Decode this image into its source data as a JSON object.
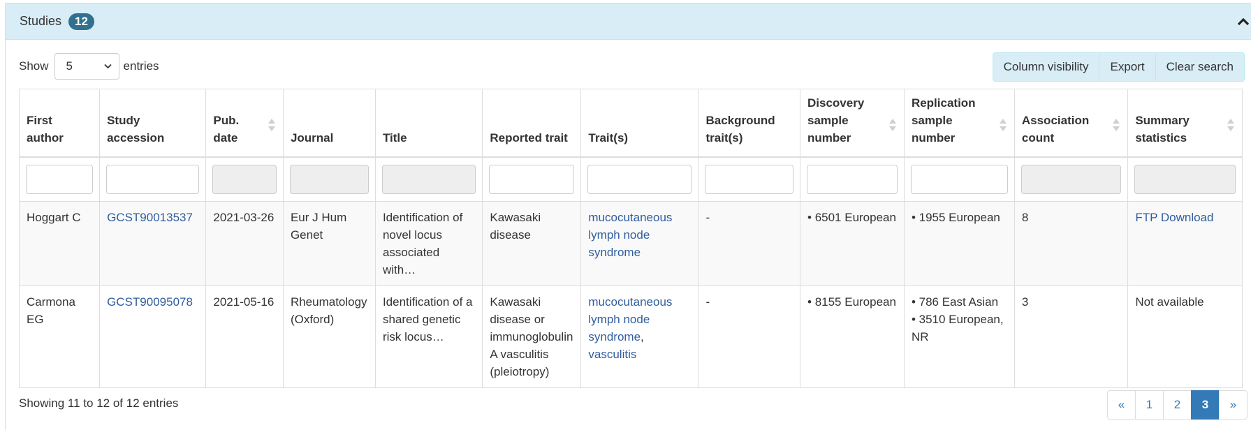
{
  "panel": {
    "title": "Studies",
    "count_badge": "12"
  },
  "length_control": {
    "prefix": "Show",
    "selected": "5",
    "suffix": "entries"
  },
  "toolbar": {
    "column_visibility_label": "Column visibility",
    "export_label": "Export",
    "clear_search_label": "Clear search"
  },
  "columns": [
    {
      "line1": "First",
      "line2": "author",
      "line3": "",
      "sortable": false,
      "filter": "enabled"
    },
    {
      "line1": "Study",
      "line2": "accession",
      "line3": "",
      "sortable": false,
      "filter": "enabled"
    },
    {
      "line1": "Pub.",
      "line2": "date",
      "line3": "",
      "sortable": true,
      "filter": "disabled"
    },
    {
      "line1": "Journal",
      "line2": "",
      "line3": "",
      "sortable": false,
      "filter": "disabled"
    },
    {
      "line1": "Title",
      "line2": "",
      "line3": "",
      "sortable": false,
      "filter": "disabled"
    },
    {
      "line1": "Reported trait",
      "line2": "",
      "line3": "",
      "sortable": false,
      "filter": "enabled"
    },
    {
      "line1": "Trait(s)",
      "line2": "",
      "line3": "",
      "sortable": false,
      "filter": "enabled"
    },
    {
      "line1": "Background",
      "line2": "trait(s)",
      "line3": "",
      "sortable": false,
      "filter": "enabled"
    },
    {
      "line1": "Discovery",
      "line2": "sample",
      "line3": "number",
      "sortable": true,
      "filter": "enabled"
    },
    {
      "line1": "Replication",
      "line2": "sample",
      "line3": "number",
      "sortable": true,
      "filter": "enabled"
    },
    {
      "line1": "Association",
      "line2": "count",
      "line3": "",
      "sortable": true,
      "filter": "disabled"
    },
    {
      "line1": "Summary",
      "line2": "statistics",
      "line3": "",
      "sortable": true,
      "filter": "disabled"
    }
  ],
  "rows": [
    {
      "first_author": "Hoggart C",
      "accession": "GCST90013537",
      "pub_date": "2021-03-26",
      "journal": "Eur J Hum Genet",
      "title": "Identification of novel locus associated with…",
      "reported_trait": "Kawasaki disease",
      "traits": [
        "mucocutaneous lymph node syndrome"
      ],
      "background_traits": "-",
      "discovery": [
        "• 6501 European"
      ],
      "replication": [
        "• 1955 European"
      ],
      "association_count": "8",
      "summary_stats": "FTP Download",
      "summary_is_link": true
    },
    {
      "first_author": "Carmona EG",
      "accession": "GCST90095078",
      "pub_date": "2021-05-16",
      "journal": "Rheumatology (Oxford)",
      "title": "Identification of a shared genetic risk locus…",
      "reported_trait": "Kawasaki disease or immunoglobulin A vasculitis (pleiotropy)",
      "traits": [
        "mucocutaneous lymph node syndrome",
        "vasculitis"
      ],
      "background_traits": "-",
      "discovery": [
        "• 8155 European"
      ],
      "replication": [
        "• 786 East Asian",
        "• 3510 European, NR"
      ],
      "association_count": "3",
      "summary_stats": "Not available",
      "summary_is_link": false
    }
  ],
  "footer": {
    "info": "Showing 11 to 12 of 12 entries"
  },
  "pagination": {
    "prev": "«",
    "pages": [
      "1",
      "2",
      "3"
    ],
    "active": "3",
    "next": "»"
  },
  "colors": {
    "panel_header_bg": "#d9edf7",
    "badge_bg": "#31708f",
    "link": "#2f5d9e",
    "active_page": "#337ab7"
  }
}
